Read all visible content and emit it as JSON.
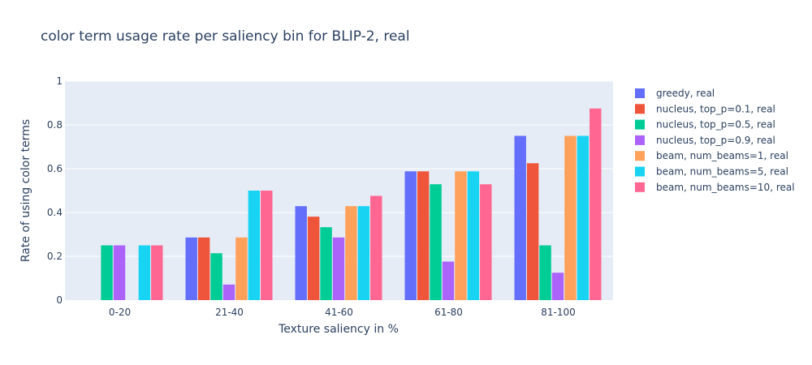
{
  "chart_data": {
    "type": "bar",
    "title": "color term usage rate per saliency bin for BLIP-2, real",
    "xlabel": "Texture saliency in %",
    "ylabel": "Rate of using color terms",
    "categories": [
      "0-20",
      "21-40",
      "41-60",
      "61-80",
      "81-100"
    ],
    "ylim": [
      0,
      1
    ],
    "yticks": [
      0,
      0.2,
      0.4,
      0.6,
      0.8,
      1
    ],
    "ytick_labels": [
      "0",
      "0.2",
      "0.4",
      "0.6",
      "0.8",
      "1"
    ],
    "grid": true,
    "legend_position": "right",
    "series": [
      {
        "name": "greedy, real",
        "color": "#636efa",
        "values": [
          0,
          0.286,
          0.429,
          0.588,
          0.75
        ]
      },
      {
        "name": "nucleus, top_p=0.1, real",
        "color": "#ef553b",
        "values": [
          0,
          0.286,
          0.381,
          0.588,
          0.625
        ]
      },
      {
        "name": "nucleus, top_p=0.5, real",
        "color": "#00cc96",
        "values": [
          0.25,
          0.214,
          0.333,
          0.529,
          0.25
        ]
      },
      {
        "name": "nucleus, top_p=0.9, real",
        "color": "#ab63fa",
        "values": [
          0.25,
          0.071,
          0.286,
          0.176,
          0.125
        ]
      },
      {
        "name": "beam, num_beams=1, real",
        "color": "#ffa15a",
        "values": [
          0,
          0.286,
          0.429,
          0.588,
          0.75
        ]
      },
      {
        "name": "beam, num_beams=5, real",
        "color": "#19d3f3",
        "values": [
          0.25,
          0.5,
          0.429,
          0.588,
          0.75
        ]
      },
      {
        "name": "beam, num_beams=10, real",
        "color": "#ff6692",
        "values": [
          0.25,
          0.5,
          0.476,
          0.529,
          0.875
        ]
      }
    ]
  },
  "colors": {
    "plot_background": "#e5ecf6",
    "gridline": "#ffffff",
    "text": "#2a3f5f"
  }
}
